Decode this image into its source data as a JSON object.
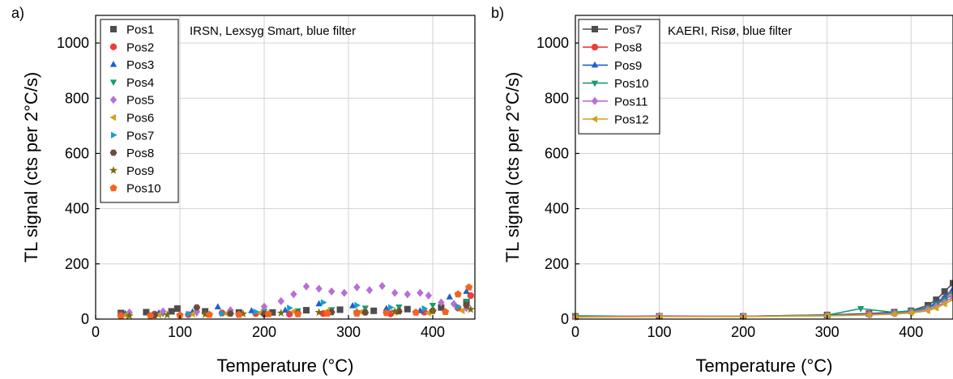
{
  "figure": {
    "panels": [
      "a)",
      "b)"
    ]
  },
  "chart_data": [
    {
      "type": "scatter",
      "panel_label": "a)",
      "annotation": "IRSN, Lexsyg Smart, blue filter",
      "xlabel": "Temperature (°C)",
      "ylabel": "TL signal (cts per 2°C/s)",
      "xlim": [
        0,
        450
      ],
      "ylim": [
        0,
        1100
      ],
      "xticks": [
        0,
        100,
        200,
        300,
        400
      ],
      "yticks": [
        0,
        200,
        400,
        600,
        800,
        1000
      ],
      "grid": true,
      "legend_position": "top-left",
      "series": [
        {
          "name": "Pos1",
          "color": "#4d4d4d",
          "marker": "square",
          "x": [
            30,
            60,
            90,
            97,
            130,
            170,
            210,
            250,
            290,
            330,
            370,
            410,
            440
          ],
          "y": [
            22,
            25,
            28,
            38,
            28,
            24,
            24,
            32,
            34,
            30,
            36,
            42,
            60
          ]
        },
        {
          "name": "Pos2",
          "color": "#f03c3c",
          "marker": "circle",
          "x": [
            30,
            70,
            110,
            150,
            190,
            230,
            270,
            310,
            350,
            390,
            430,
            445
          ],
          "y": [
            15,
            18,
            16,
            22,
            20,
            18,
            20,
            22,
            19,
            25,
            40,
            85
          ]
        },
        {
          "name": "Pos3",
          "color": "#1e5fd2",
          "marker": "triangle-up",
          "x": [
            35,
            75,
            115,
            145,
            185,
            225,
            265,
            305,
            345,
            385,
            420,
            440
          ],
          "y": [
            20,
            22,
            26,
            44,
            30,
            32,
            55,
            48,
            38,
            30,
            80,
            100
          ]
        },
        {
          "name": "Pos4",
          "color": "#1a9a6a",
          "marker": "triangle-down",
          "x": [
            40,
            80,
            120,
            160,
            200,
            240,
            280,
            320,
            360,
            400,
            440
          ],
          "y": [
            18,
            20,
            22,
            25,
            28,
            30,
            34,
            40,
            44,
            50,
            65
          ]
        },
        {
          "name": "Pos5",
          "color": "#b86ed8",
          "marker": "diamond",
          "x": [
            40,
            80,
            120,
            160,
            200,
            220,
            235,
            250,
            265,
            280,
            295,
            310,
            325,
            340,
            355,
            370,
            385,
            395,
            410,
            425,
            440
          ],
          "y": [
            24,
            28,
            26,
            32,
            45,
            65,
            90,
            118,
            110,
            100,
            95,
            115,
            105,
            120,
            95,
            90,
            95,
            85,
            60,
            55,
            40
          ]
        },
        {
          "name": "Pos6",
          "color": "#d4a017",
          "marker": "triangle-left",
          "x": [
            35,
            75,
            115,
            155,
            195,
            235,
            275,
            315,
            355,
            395,
            435
          ],
          "y": [
            14,
            15,
            18,
            20,
            22,
            28,
            30,
            26,
            24,
            22,
            30
          ]
        },
        {
          "name": "Pos7",
          "color": "#17a2c6",
          "marker": "triangle-right",
          "x": [
            30,
            70,
            110,
            150,
            190,
            230,
            270,
            310,
            350,
            390,
            430
          ],
          "y": [
            12,
            16,
            18,
            20,
            26,
            40,
            60,
            50,
            42,
            38,
            45
          ]
        },
        {
          "name": "Pos8",
          "color": "#6e4a3c",
          "marker": "hexagon",
          "x": [
            30,
            70,
            120,
            160,
            200,
            240,
            280,
            320,
            360,
            400,
            440
          ],
          "y": [
            10,
            14,
            42,
            20,
            18,
            22,
            25,
            24,
            28,
            30,
            50
          ]
        },
        {
          "name": "Pos9",
          "color": "#7a6a12",
          "marker": "star",
          "x": [
            40,
            85,
            130,
            175,
            220,
            265,
            310,
            355,
            400,
            445
          ],
          "y": [
            12,
            15,
            17,
            19,
            22,
            24,
            26,
            28,
            30,
            35
          ]
        },
        {
          "name": "Pos10",
          "color": "#f4631e",
          "marker": "pentagon",
          "x": [
            30,
            65,
            100,
            135,
            170,
            205,
            240,
            275,
            310,
            345,
            380,
            415,
            430,
            443
          ],
          "y": [
            10,
            12,
            14,
            16,
            16,
            18,
            18,
            20,
            20,
            22,
            24,
            26,
            90,
            115
          ]
        }
      ]
    },
    {
      "type": "line",
      "panel_label": "b)",
      "annotation": "KAERI, Risø, blue filter",
      "xlabel": "Temperature (°C)",
      "ylabel": "TL signal (cts per 2°C/s)",
      "xlim": [
        0,
        450
      ],
      "ylim": [
        0,
        1100
      ],
      "xticks": [
        0,
        100,
        200,
        300,
        400
      ],
      "yticks": [
        0,
        200,
        400,
        600,
        800,
        1000
      ],
      "grid": true,
      "legend_position": "top-left",
      "series": [
        {
          "name": "Pos7",
          "color": "#4d4d4d",
          "marker": "square",
          "x": [
            0,
            100,
            200,
            300,
            350,
            380,
            400,
            420,
            430,
            440,
            450
          ],
          "y": [
            10,
            10,
            10,
            15,
            20,
            25,
            30,
            50,
            70,
            100,
            130
          ]
        },
        {
          "name": "Pos8",
          "color": "#f03c3c",
          "marker": "circle",
          "x": [
            0,
            100,
            200,
            300,
            350,
            380,
            400,
            420,
            430,
            440,
            450
          ],
          "y": [
            8,
            10,
            10,
            14,
            18,
            22,
            28,
            40,
            55,
            75,
            100
          ]
        },
        {
          "name": "Pos9",
          "color": "#1e5fd2",
          "marker": "triangle-up",
          "x": [
            0,
            100,
            200,
            300,
            350,
            380,
            400,
            420,
            430,
            440,
            450
          ],
          "y": [
            9,
            11,
            10,
            15,
            18,
            22,
            30,
            42,
            60,
            80,
            110
          ]
        },
        {
          "name": "Pos10",
          "color": "#1a9a6a",
          "marker": "triangle-down",
          "x": [
            0,
            100,
            200,
            300,
            340,
            380,
            400,
            420,
            430,
            440,
            450
          ],
          "y": [
            12,
            10,
            10,
            14,
            38,
            24,
            30,
            40,
            52,
            70,
            90
          ]
        },
        {
          "name": "Pos11",
          "color": "#b86ed8",
          "marker": "diamond",
          "x": [
            0,
            100,
            200,
            300,
            350,
            380,
            400,
            420,
            430,
            440,
            450
          ],
          "y": [
            8,
            12,
            10,
            12,
            16,
            20,
            25,
            35,
            45,
            60,
            80
          ]
        },
        {
          "name": "Pos12",
          "color": "#d4a017",
          "marker": "triangle-left",
          "x": [
            0,
            100,
            200,
            300,
            350,
            380,
            400,
            420,
            430,
            440,
            450
          ],
          "y": [
            7,
            9,
            9,
            12,
            15,
            18,
            22,
            30,
            40,
            55,
            70
          ]
        }
      ]
    }
  ]
}
